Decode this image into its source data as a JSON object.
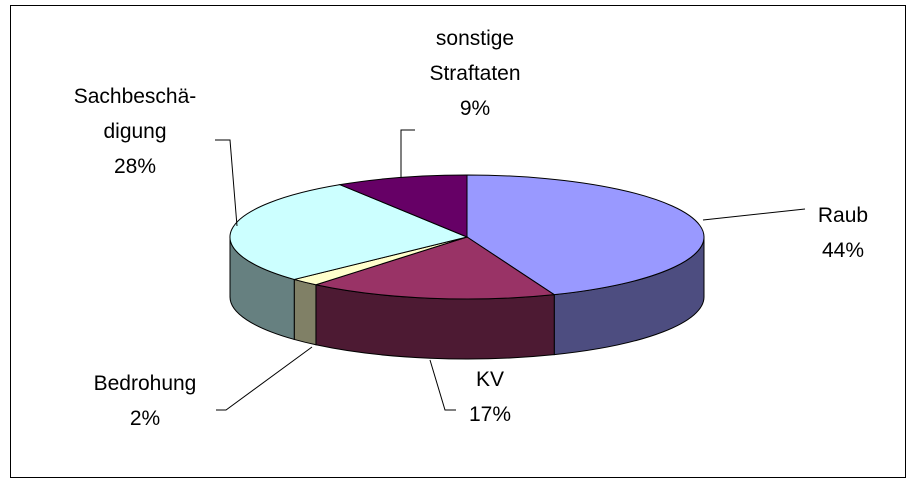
{
  "chart_data": {
    "type": "pie3d",
    "categories": [
      "Raub",
      "KV",
      "Bedrohung",
      "Sachbeschä-\ndigung",
      "sonstige\nStraftaten"
    ],
    "values": [
      44,
      17,
      2,
      28,
      9
    ],
    "value_labels": [
      "44%",
      "17%",
      "2%",
      "28%",
      "9%"
    ],
    "colors": [
      "#9999ff",
      "#993366",
      "#ffffcc",
      "#ccffff",
      "#660066"
    ]
  }
}
